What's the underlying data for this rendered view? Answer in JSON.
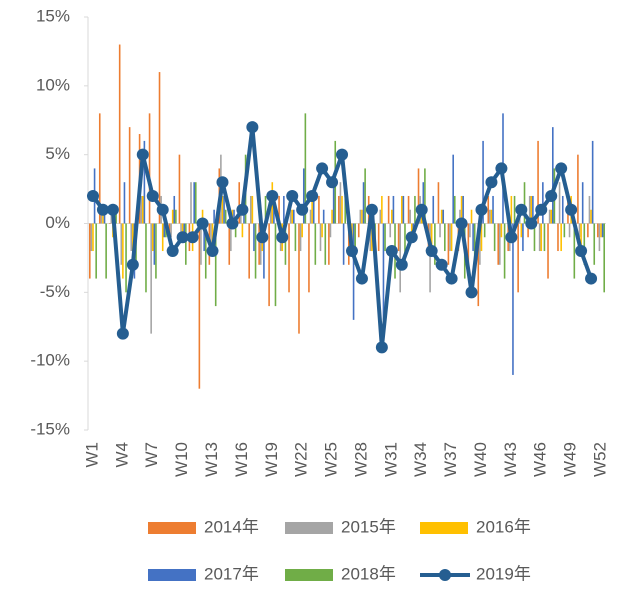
{
  "chart_data": {
    "type": "bar-line",
    "categories": [
      "W1",
      null,
      null,
      "W4",
      null,
      null,
      "W7",
      null,
      null,
      "W10",
      null,
      null,
      "W13",
      null,
      null,
      "W16",
      null,
      null,
      "W19",
      null,
      null,
      "W22",
      null,
      null,
      "W25",
      null,
      null,
      "W28",
      null,
      null,
      "W31",
      null,
      null,
      "W34",
      null,
      null,
      "W37",
      null,
      null,
      "W40",
      null,
      null,
      "W43",
      null,
      null,
      "W46",
      null,
      null,
      "W49",
      null,
      null,
      "W52"
    ],
    "series": [
      {
        "name": "2014年",
        "color": "#ed7d31",
        "kind": "bar",
        "values": [
          -4,
          8,
          0,
          13,
          7,
          6.5,
          8,
          11,
          -1,
          5,
          -2,
          -12,
          -3,
          4,
          -3,
          3,
          -4,
          -3,
          -6,
          2,
          -5,
          -8,
          -5,
          2,
          -3,
          2,
          -3,
          -1,
          2,
          -2,
          2,
          -2,
          2,
          4,
          -2,
          3,
          -3,
          -2,
          -4,
          -6,
          2,
          -3,
          -2,
          -5,
          -1,
          6,
          -4,
          -2,
          2,
          5,
          -1,
          -1
        ]
      },
      {
        "name": "2015年",
        "color": "#a5a5a5",
        "kind": "bar",
        "values": [
          -2,
          1,
          1,
          -3,
          -2,
          2,
          -8,
          2,
          -1,
          -1,
          3,
          -3,
          -2,
          5,
          -2,
          1,
          2,
          -3,
          2,
          -2,
          1,
          -2,
          1,
          -2,
          -1,
          3,
          -2,
          1,
          -2,
          1,
          -1,
          -5,
          1,
          2,
          -5,
          -1,
          -2,
          1,
          -1,
          -3,
          1,
          -3,
          -2,
          1,
          2,
          -2,
          1,
          3,
          -1,
          -1,
          2,
          -2
        ]
      },
      {
        "name": "2016年",
        "color": "#ffc000",
        "kind": "bar",
        "values": [
          -2,
          1,
          -1,
          -4,
          -2,
          2,
          -2,
          -2,
          1,
          -1,
          -2,
          1,
          -2,
          2,
          1,
          -1,
          2,
          -2,
          3,
          -2,
          1,
          -1,
          2,
          -1,
          1,
          2,
          -2,
          1,
          -2,
          2,
          1,
          2,
          -1,
          1,
          -2,
          1,
          -2,
          2,
          1,
          -2,
          1,
          -1,
          2,
          -1,
          2,
          -2,
          1,
          -2,
          2,
          -2,
          1,
          -1
        ]
      },
      {
        "name": "2017年",
        "color": "#4472c4",
        "kind": "bar",
        "values": [
          4,
          1,
          1,
          3,
          -4,
          6,
          -3,
          -1,
          2,
          -1,
          3,
          -2,
          1,
          2,
          1,
          1,
          -2,
          -4,
          2,
          2,
          1,
          4,
          2,
          1,
          3,
          -3,
          -7,
          3,
          1,
          -7,
          2,
          2,
          -1,
          3,
          2,
          1,
          5,
          2,
          -2,
          6,
          2,
          8,
          -11,
          -2,
          2,
          3,
          7,
          2,
          1,
          3,
          6,
          -1
        ]
      },
      {
        "name": "2018年",
        "color": "#70ad47",
        "kind": "bar",
        "values": [
          -4,
          -4,
          1,
          -5,
          -3,
          -5,
          -4,
          -1,
          1,
          -3,
          3,
          -4,
          -6,
          1,
          -1,
          5,
          -4,
          2,
          -6,
          -3,
          -2,
          8,
          -3,
          -3,
          6,
          2,
          -3,
          4,
          -3,
          -2,
          -4,
          -3,
          2,
          4,
          -3,
          -2,
          2,
          -4,
          -3,
          -1,
          -2,
          -4,
          2,
          3,
          -2,
          -2,
          4,
          -1,
          -4,
          -3,
          -3,
          -5
        ]
      },
      {
        "name": "2019年",
        "color": "#255e91",
        "kind": "line",
        "values": [
          2,
          1,
          1,
          -8,
          -3,
          5,
          2,
          1,
          -2,
          -1,
          -1,
          0,
          -2,
          3,
          0,
          1,
          7,
          -1,
          2,
          -1,
          2,
          1,
          2,
          4,
          3,
          5,
          -2,
          -4,
          1,
          -9,
          -2,
          -3,
          -1,
          1,
          -2,
          -3,
          -4,
          0,
          -5,
          1,
          3,
          4,
          -1,
          1,
          0,
          1,
          2,
          4,
          1,
          -2,
          -4,
          null
        ]
      }
    ],
    "ylim": [
      -15,
      15
    ],
    "yticks": [
      {
        "value": -15,
        "label": "-15%"
      },
      {
        "value": -10,
        "label": "-10%"
      },
      {
        "value": -5,
        "label": "-5%"
      },
      {
        "value": 0,
        "label": "0%"
      },
      {
        "value": 5,
        "label": "5%"
      },
      {
        "value": 10,
        "label": "10%"
      },
      {
        "value": 15,
        "label": "15%"
      }
    ]
  }
}
